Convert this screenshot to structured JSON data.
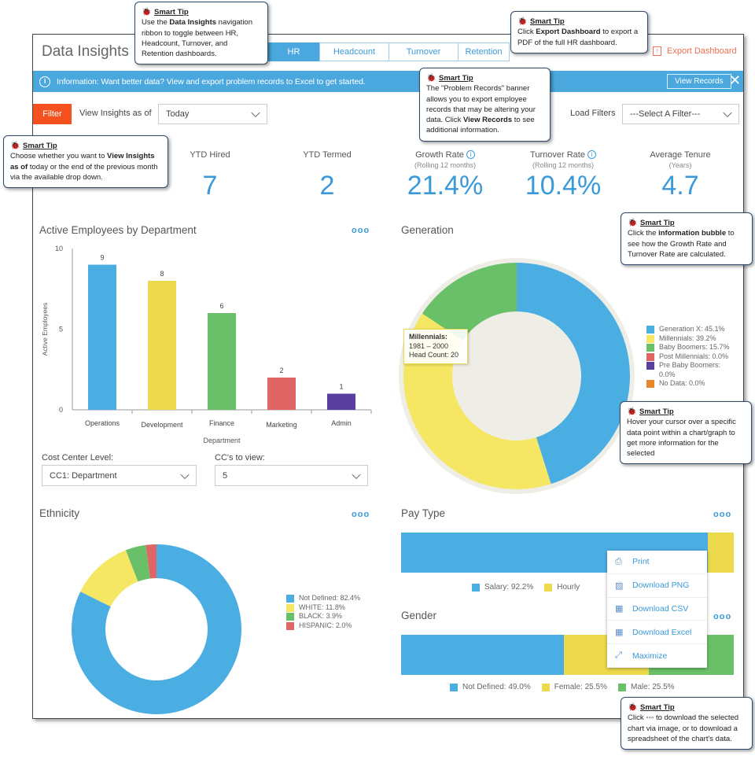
{
  "header": {
    "title": "Data Insights",
    "tabs": [
      {
        "label": "HR",
        "active": true
      },
      {
        "label": "Headcount"
      },
      {
        "label": "Turnover"
      },
      {
        "label": "Retention"
      }
    ],
    "export_label": "Export Dashboard"
  },
  "banner": {
    "text": "Information: Want better data? View and export problem records to Excel to get started.",
    "button": "View Records"
  },
  "filters": {
    "filter_button": "Filter",
    "view_as_label": "View Insights as of",
    "view_as_value": "Today",
    "load_label": "Load Filters",
    "load_value": "---Select A Filter---"
  },
  "kpis": [
    {
      "label": "YTD Hired",
      "sub": "",
      "value": "7"
    },
    {
      "label": "YTD Termed",
      "sub": "",
      "value": "2"
    },
    {
      "label": "Growth Rate",
      "sub": "(Rolling 12 months)",
      "value": "21.4%",
      "info": true
    },
    {
      "label": "Turnover Rate",
      "sub": "(Rolling 12 months)",
      "value": "10.4%",
      "info": true
    },
    {
      "label": "Average Tenure",
      "sub": "(Years)",
      "value": "4.7"
    }
  ],
  "controls": {
    "cost_center_label": "Cost Center Level:",
    "cost_center_value": "CC1: Department",
    "ccs_label": "CC's to view:",
    "ccs_value": "5"
  },
  "colors": {
    "accent": "#4aa8de",
    "orange": "#f4511e",
    "blue": "#4baee3",
    "yellow": "#ecd94c",
    "green": "#6abf69",
    "red": "#e06666",
    "purple": "#5b3fa0",
    "dark_orange": "#e8862a"
  },
  "chart_data": [
    {
      "type": "bar",
      "title": "Active Employees by Department",
      "xlabel": "Department",
      "ylabel": "Active Employees",
      "ylim": [
        0,
        10
      ],
      "yticks": [
        "0",
        "5",
        "10"
      ],
      "categories": [
        "Operations",
        "Development",
        "Finance",
        "Marketing",
        "Admin"
      ],
      "values": [
        9,
        8,
        6,
        2,
        1
      ],
      "colors": [
        "#4baee3",
        "#ecd94c",
        "#6abf69",
        "#e06666",
        "#5b3fa0"
      ]
    },
    {
      "type": "pie",
      "title": "Generation",
      "slices": [
        {
          "label": "Generation X: 45.1%",
          "value": 45.1,
          "color": "#4baee3"
        },
        {
          "label": "Millennials: 39.2%",
          "value": 39.2,
          "color": "#f5e663"
        },
        {
          "label": "Baby Boomers: 15.7%",
          "value": 15.7,
          "color": "#6abf69"
        },
        {
          "label": "Post Millennials: 0.0%",
          "value": 0,
          "color": "#e06666"
        },
        {
          "label": "Pre Baby Boomers: 0.0%",
          "value": 0,
          "color": "#5b3fa0"
        },
        {
          "label": "No Data: 0.0%",
          "value": 0,
          "color": "#e8862a"
        }
      ],
      "tooltip": {
        "title": "Millennials:",
        "range": "1981 – 2000",
        "count": "Head Count: 20"
      }
    },
    {
      "type": "pie",
      "title": "Ethnicity",
      "slices": [
        {
          "label": "Not Defined: 82.4%",
          "value": 82.4,
          "color": "#4baee3"
        },
        {
          "label": "WHITE: 11.8%",
          "value": 11.8,
          "color": "#f5e663"
        },
        {
          "label": "BLACK: 3.9%",
          "value": 3.9,
          "color": "#6abf69"
        },
        {
          "label": "HISPANIC: 2.0%",
          "value": 2.0,
          "color": "#e06666"
        }
      ]
    },
    {
      "type": "bar",
      "orientation": "stacked-horizontal",
      "title": "Pay Type",
      "slices": [
        {
          "label": "Salary: 92.2%",
          "value": 92.2,
          "color": "#4baee3"
        },
        {
          "label": "Hourly",
          "value": 7.8,
          "color": "#ecd94c"
        }
      ]
    },
    {
      "type": "bar",
      "orientation": "stacked-horizontal",
      "title": "Gender",
      "slices": [
        {
          "label": "Not Defined: 49.0%",
          "value": 49.0,
          "color": "#4baee3"
        },
        {
          "label": "Female: 25.5%",
          "value": 25.5,
          "color": "#ecd94c"
        },
        {
          "label": "Male: 25.5%",
          "value": 25.5,
          "color": "#6abf69"
        }
      ]
    }
  ],
  "menu": [
    {
      "label": "Print",
      "icon": "printer-icon",
      "glyph": "⎙"
    },
    {
      "label": "Download PNG",
      "icon": "image-icon",
      "glyph": "▨"
    },
    {
      "label": "Download CSV",
      "icon": "table-icon",
      "glyph": "▦"
    },
    {
      "label": "Download Excel",
      "icon": "table-icon",
      "glyph": "▦"
    },
    {
      "label": "Maximize",
      "icon": "expand-icon",
      "glyph": "⤢"
    }
  ],
  "tips": [
    {
      "title": "Smart Tip",
      "html": "Use the <b>Data Insights</b> navigation ribbon to toggle between HR, Headcount, Turnover, and Retention dashboards."
    },
    {
      "title": "Smart Tip",
      "html": "Click <b>Export Dashboard</b> to export a PDF of the full HR dashboard."
    },
    {
      "title": "Smart Tip",
      "html": "The \"Problem Records\" banner allows you to export employee records that may be altering your data. Click <b>View Records</b> to see additional information."
    },
    {
      "title": "Smart Tip",
      "html": "Choose whether you want to <b>View Insights as of</b> today or the end of the previous month via the available drop down."
    },
    {
      "title": "Smart Tip",
      "html": "Click the <b>information bubble</b> to see how the Growth Rate and Turnover Rate are calculated."
    },
    {
      "title": "Smart Tip",
      "html": "Hover your cursor over a specific data point within a chart/graph to get more information for the selected"
    },
    {
      "title": "Smart Tip",
      "html": "Click ◦◦◦ to download the selected chart via image, or to download a spreadsheet of the chart's data."
    }
  ],
  "more_label": "ooo"
}
